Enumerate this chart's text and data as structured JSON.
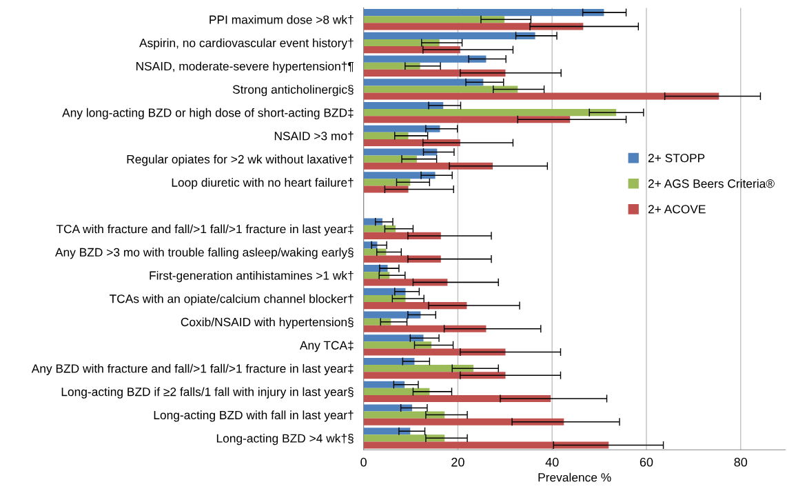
{
  "chart_data": {
    "type": "bar",
    "orientation": "horizontal",
    "xlabel": "Prevalence %",
    "categories": [
      "PPI maximum dose >8 wk†",
      "Aspirin, no cardiovascular event history†",
      "NSAID, moderate-severe hypertension†¶",
      "Strong anticholinergic§",
      "Any long-acting BZD or high dose of short-acting BZD‡",
      "NSAID >3 mo†",
      "Regular opiates for >2 wk without laxative†",
      "Loop diuretic with no heart failure†",
      null,
      "TCA with fracture and fall/>1 fall/>1 fracture in last year‡",
      "Any BZD >3 mo with trouble falling asleep/waking early§",
      "First-generation antihistamines >1 wk†",
      "TCAs with an opiate/calcium channel blocker†",
      "Coxib/NSAID with hypertension§",
      "Any TCA‡",
      "Any BZD with fracture and fall/>1 fall/>1 fracture in last year‡",
      "Long-acting BZD if ≥2 falls/1 fall with injury in last year§",
      "Long-acting BZD with fall in last year†",
      "Long-acting BZD >4 wk†§"
    ],
    "series": [
      {
        "name": "2+ STOPP",
        "color": "#4f81bd",
        "values": [
          51.0,
          36.4,
          26.0,
          25.4,
          16.9,
          16.2,
          15.6,
          15.2,
          null,
          4.0,
          2.9,
          5.1,
          8.9,
          12.1,
          12.7,
          10.8,
          8.7,
          10.3,
          9.9
        ],
        "errors": [
          [
            46.5,
            55.7
          ],
          [
            32.3,
            41.0
          ],
          [
            22.3,
            30.2
          ],
          [
            21.7,
            29.7
          ],
          [
            13.8,
            20.6
          ],
          [
            13.2,
            19.9
          ],
          [
            12.7,
            19.2
          ],
          [
            12.2,
            18.8
          ],
          null,
          [
            2.5,
            6.2
          ],
          [
            1.7,
            4.9
          ],
          [
            3.4,
            7.5
          ],
          [
            6.6,
            11.8
          ],
          [
            9.4,
            15.3
          ],
          [
            9.9,
            16.0
          ],
          [
            8.3,
            14.0
          ],
          [
            6.4,
            11.6
          ],
          [
            7.9,
            13.5
          ],
          [
            7.5,
            13.0
          ]
        ]
      },
      {
        "name": "2+ AGS Beers Criteria®",
        "color": "#9bbb59",
        "values": [
          29.9,
          16.1,
          12.0,
          32.7,
          53.6,
          9.5,
          11.3,
          9.9,
          null,
          6.8,
          4.8,
          5.5,
          8.9,
          5.8,
          14.4,
          23.3,
          14.0,
          17.2,
          17.2
        ],
        "errors": [
          [
            24.9,
            35.5
          ],
          [
            12.3,
            20.9
          ],
          [
            8.8,
            16.3
          ],
          [
            27.5,
            38.3
          ],
          [
            47.9,
            59.4
          ],
          [
            6.6,
            13.6
          ],
          [
            8.1,
            15.5
          ],
          [
            7.0,
            14.0
          ],
          null,
          [
            4.5,
            10.5
          ],
          [
            2.8,
            8.0
          ],
          [
            3.3,
            8.8
          ],
          [
            6.1,
            12.8
          ],
          [
            3.6,
            9.2
          ],
          [
            10.8,
            19.0
          ],
          [
            18.8,
            28.6
          ],
          [
            10.5,
            18.7
          ],
          [
            13.2,
            22.0
          ],
          [
            13.2,
            22.0
          ]
        ]
      },
      {
        "name": "2+ ACOVE",
        "color": "#c0504d",
        "values": [
          46.6,
          20.5,
          30.1,
          75.4,
          43.8,
          20.5,
          27.4,
          9.5,
          null,
          16.4,
          16.4,
          17.8,
          21.9,
          26.0,
          30.1,
          30.1,
          39.7,
          42.5,
          52.0
        ],
        "errors": [
          [
            35.3,
            58.3
          ],
          [
            12.6,
            31.7
          ],
          [
            20.5,
            41.9
          ],
          [
            63.9,
            84.2
          ],
          [
            32.7,
            55.7
          ],
          [
            12.6,
            31.7
          ],
          [
            18.2,
            39.0
          ],
          [
            4.5,
            19.1
          ],
          null,
          [
            9.4,
            27.1
          ],
          [
            9.4,
            27.1
          ],
          [
            10.5,
            28.6
          ],
          [
            13.8,
            33.1
          ],
          [
            17.1,
            37.6
          ],
          [
            20.5,
            41.8
          ],
          [
            20.5,
            41.8
          ],
          [
            29.0,
            51.6
          ],
          [
            31.5,
            54.3
          ],
          [
            40.3,
            63.6
          ]
        ]
      }
    ],
    "xlim": [
      0,
      89.5
    ],
    "xticks": [
      0,
      20,
      40,
      60,
      80
    ],
    "grid": "x",
    "legend": "right"
  }
}
